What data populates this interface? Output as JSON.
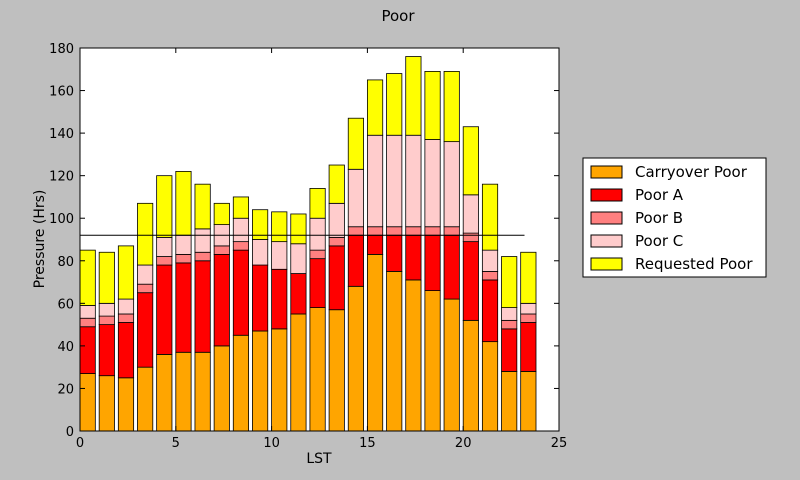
{
  "chart_data": {
    "type": "bar",
    "stacked": true,
    "title": "Poor",
    "xlabel": "LST",
    "ylabel": "Pressure (Hrs)",
    "xlim": [
      0,
      25
    ],
    "ylim": [
      0,
      180
    ],
    "xticks": [
      0,
      5,
      10,
      15,
      20,
      25
    ],
    "yticks": [
      0,
      20,
      40,
      60,
      80,
      100,
      120,
      140,
      160,
      180
    ],
    "x": [
      0,
      1,
      2,
      3,
      4,
      5,
      6,
      7,
      8,
      9,
      10,
      11,
      12,
      13,
      14,
      15,
      16,
      17,
      18,
      19,
      20,
      21,
      22,
      23
    ],
    "bar_width": 0.8,
    "reference_line": {
      "value": 92,
      "x_range": [
        0,
        23.2
      ],
      "color": "#000000"
    },
    "legend_position": "right",
    "series": [
      {
        "name": "Carryover Poor",
        "color": "#ffa500",
        "values": [
          27,
          26,
          25,
          30,
          36,
          37,
          37,
          40,
          45,
          47,
          48,
          55,
          58,
          57,
          68,
          83,
          75,
          71,
          66,
          62,
          52,
          42,
          28,
          28
        ]
      },
      {
        "name": "Poor A",
        "color": "#ff0000",
        "values": [
          22,
          24,
          26,
          35,
          42,
          42,
          43,
          43,
          40,
          31,
          28,
          19,
          23,
          30,
          24,
          9,
          17,
          21,
          26,
          30,
          37,
          29,
          20,
          23
        ]
      },
      {
        "name": "Poor B",
        "color": "#ff8080",
        "values": [
          4,
          4,
          4,
          4,
          4,
          4,
          4,
          4,
          4,
          0,
          0,
          0,
          4,
          4,
          4,
          4,
          4,
          4,
          4,
          4,
          4,
          4,
          4,
          4
        ]
      },
      {
        "name": "Poor C",
        "color": "#ffcccc",
        "values": [
          6,
          6,
          7,
          9,
          9,
          9,
          11,
          10,
          11,
          12,
          13,
          14,
          15,
          16,
          27,
          43,
          43,
          43,
          41,
          40,
          18,
          10,
          6,
          5
        ]
      },
      {
        "name": "Requested Poor",
        "color": "#ffff00",
        "values": [
          26,
          24,
          25,
          29,
          29,
          30,
          21,
          10,
          10,
          14,
          14,
          14,
          14,
          18,
          24,
          26,
          29,
          37,
          32,
          33,
          32,
          31,
          24,
          24
        ]
      }
    ]
  }
}
